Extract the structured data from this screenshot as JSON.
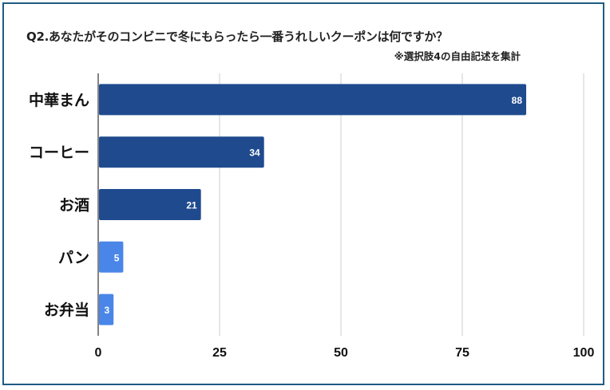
{
  "chart_data": {
    "type": "bar",
    "orientation": "horizontal",
    "title": "Q2.あなたがそのコンビニで冬にもらったら一番うれしいクーポンは何ですか？",
    "subtitle": "※選択肢4の自由記述を集計",
    "categories": [
      "中華まん",
      "コーヒー",
      "お酒",
      "パン",
      "お弁当"
    ],
    "values": [
      88,
      34,
      21,
      5,
      3
    ],
    "bar_colors": [
      "#1f4b8e",
      "#1f4b8e",
      "#1f4b8e",
      "#4a86e8",
      "#4a86e8"
    ],
    "xlim": [
      0,
      100
    ],
    "xticks": [
      0,
      25,
      50,
      75,
      100
    ],
    "grid": true,
    "xlabel": "",
    "ylabel": ""
  }
}
